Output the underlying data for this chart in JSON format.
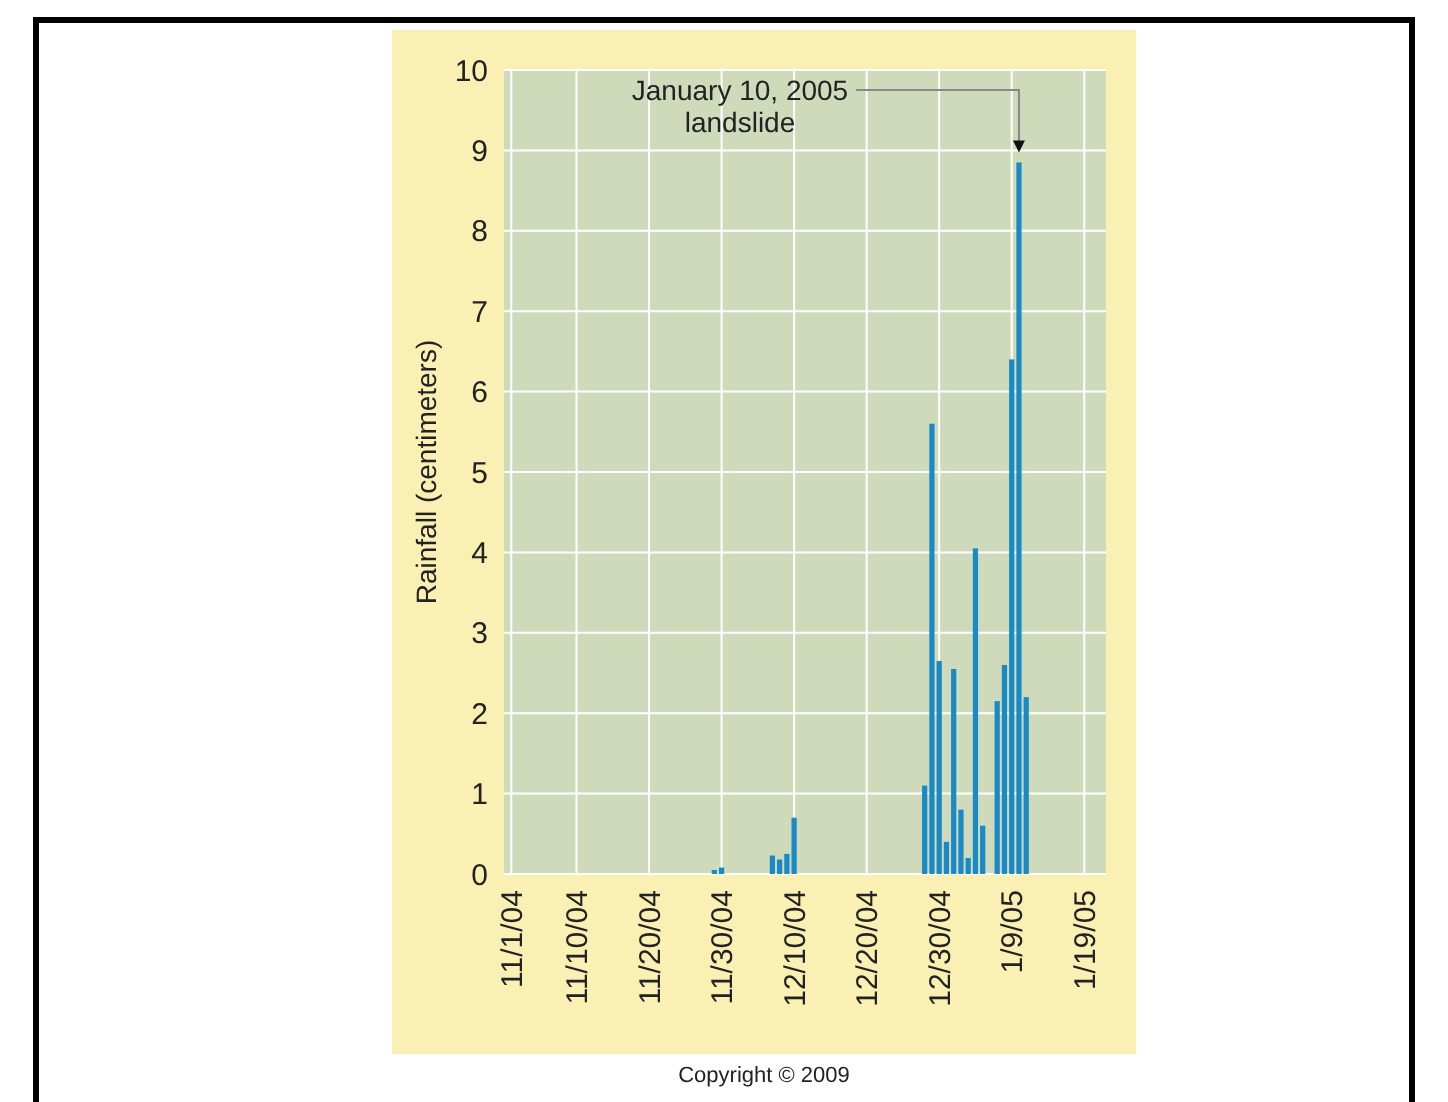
{
  "chart_data": {
    "type": "bar",
    "ylabel": "Rainfall (centimeters)",
    "x": [
      "2004-11-29",
      "2004-11-30",
      "2004-12-07",
      "2004-12-08",
      "2004-12-09",
      "2004-12-10",
      "2004-12-28",
      "2004-12-29",
      "2004-12-30",
      "2004-12-31",
      "2005-01-01",
      "2005-01-02",
      "2005-01-03",
      "2005-01-04",
      "2005-01-05",
      "2005-01-07",
      "2005-01-08",
      "2005-01-09",
      "2005-01-10",
      "2005-01-11"
    ],
    "values": [
      0.05,
      0.08,
      0.23,
      0.18,
      0.25,
      0.7,
      1.1,
      5.6,
      2.65,
      0.4,
      2.55,
      0.8,
      0.2,
      4.05,
      0.6,
      2.15,
      2.6,
      6.4,
      8.85,
      2.2
    ],
    "color": "#1a8ac6",
    "xlim": [
      "2004-10-31",
      "2005-01-22"
    ],
    "xticks": [
      {
        "value": "2004-11-01",
        "label": "11/1/04"
      },
      {
        "value": "2004-11-10",
        "label": "11/10/04"
      },
      {
        "value": "2004-11-20",
        "label": "11/20/04"
      },
      {
        "value": "2004-11-30",
        "label": "11/30/04"
      },
      {
        "value": "2004-12-10",
        "label": "12/10/04"
      },
      {
        "value": "2004-12-20",
        "label": "12/20/04"
      },
      {
        "value": "2004-12-30",
        "label": "12/30/04"
      },
      {
        "value": "2005-01-09",
        "label": "1/9/05"
      },
      {
        "value": "2005-01-19",
        "label": "1/19/05"
      }
    ],
    "ylim": [
      0,
      10
    ],
    "yticks": [
      0,
      1,
      2,
      3,
      4,
      5,
      6,
      7,
      8,
      9,
      10
    ],
    "grid": true,
    "annotations": [
      "January 10, 2005\nlandslide",
      "Copyright © 2009"
    ]
  }
}
